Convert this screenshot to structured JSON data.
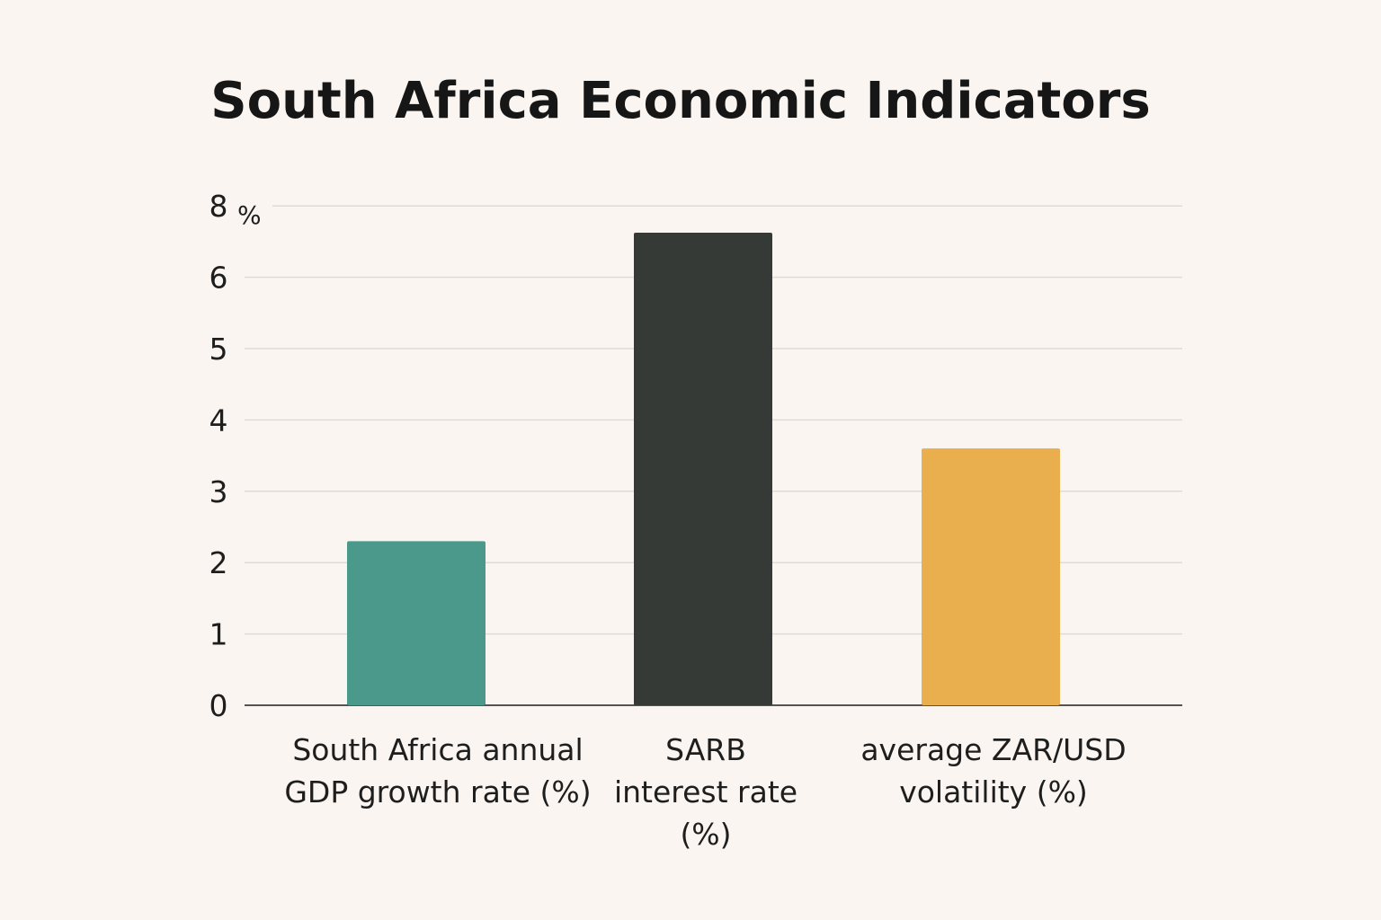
{
  "chart_data": {
    "type": "bar",
    "title": "South Africa Economic Indicators",
    "ylabel": "%",
    "xlabel": "",
    "yticks": [
      "0",
      "1",
      "2",
      "3",
      "4",
      "5",
      "6",
      "8"
    ],
    "ylim": [
      0,
      8
    ],
    "grid": true,
    "categories": [
      [
        "South Africa annual",
        "GDP growth rate (%)"
      ],
      [
        "SARB",
        "interest rate",
        "(%)"
      ],
      [
        "average ZAR/USD",
        "volatility (%)"
      ]
    ],
    "values": [
      2.3,
      7.25,
      3.6
    ],
    "colors": [
      "#4a998a",
      "#363a36",
      "#e9ae4e"
    ]
  }
}
